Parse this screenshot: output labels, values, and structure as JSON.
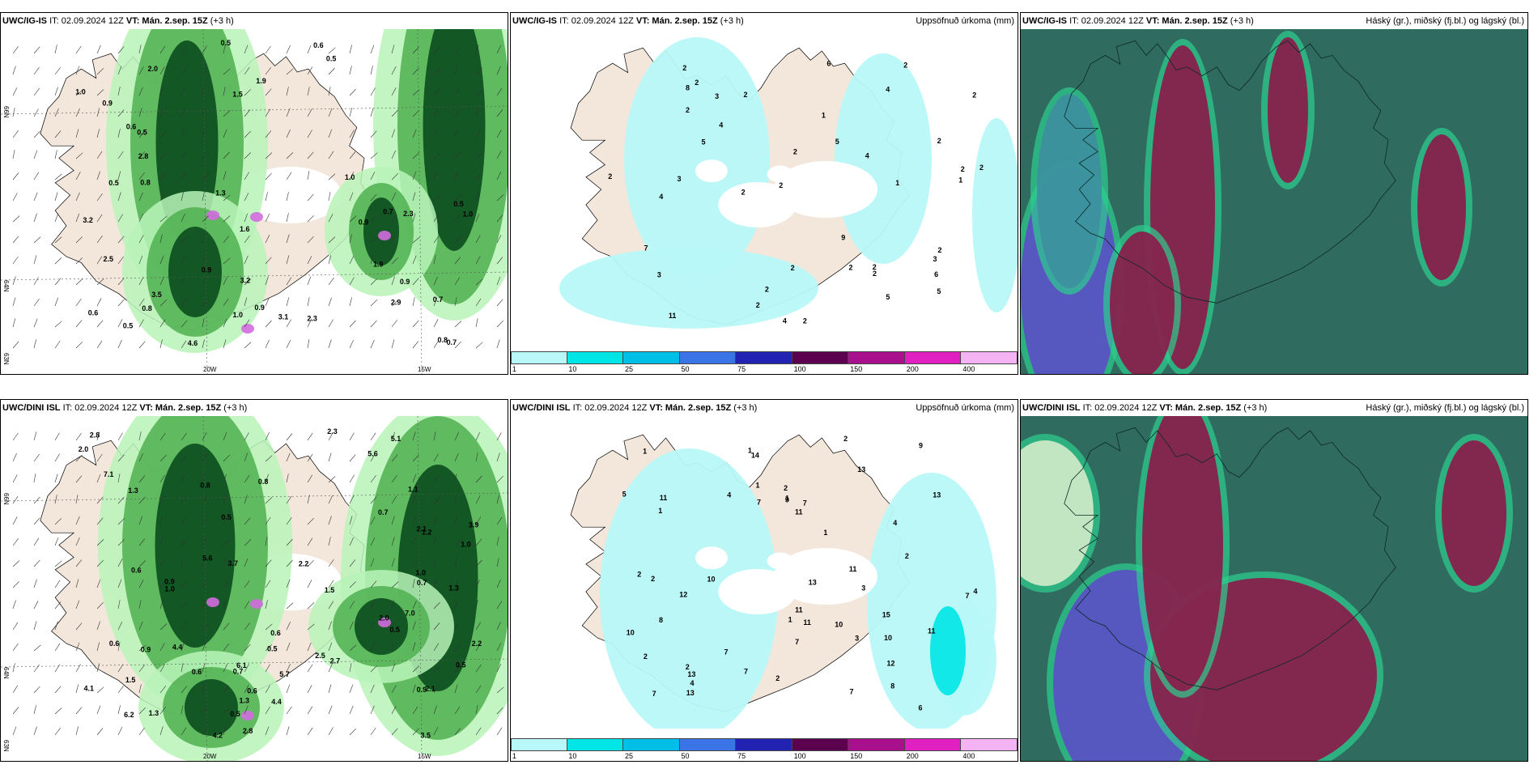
{
  "colors": {
    "land": "#f3e7dc",
    "sea": "#ffffff",
    "precip_light": "#b9f3b9",
    "precip_mid": "#4fb04f",
    "precip_dark": "#0b4d1e",
    "precip_pink": "#d36be0",
    "cloud_teal": "#2f6b5e",
    "cloud_maroon": "#8a1c4a",
    "cloud_violet": "#5a4fc4",
    "cloud_green": "#2ecf8f"
  },
  "colorbar": {
    "colors": [
      "#b8f8f8",
      "#00e6e6",
      "#00bfe6",
      "#3a74e6",
      "#2222b3",
      "#5c0050",
      "#a8108e",
      "#e020c0",
      "#f4b4f4"
    ],
    "labels": [
      "1",
      "10",
      "25",
      "50",
      "75",
      "100",
      "150",
      "200",
      "400"
    ]
  },
  "panels": [
    {
      "id": "top-precip",
      "model": "UWC/IG-IS",
      "it_label": "IT: 02.09.2024 12Z",
      "vt_label": "VT: Mán. 2.sep. 15Z",
      "offset": "(+3 h)",
      "right_title": "",
      "lat_labels": [
        "66N",
        "64N",
        "63N"
      ],
      "lon_labels": [
        "20W",
        "15W"
      ],
      "values": [
        "0.5",
        "0.6",
        "0.9",
        "0.8",
        "1.3",
        "2.0",
        "1.6",
        "1.9",
        "2.3",
        "3.2",
        "0.7",
        "1.0",
        "0.9",
        "0.5",
        "1.0",
        "0.7",
        "0.5",
        "0.6",
        "0.9",
        "0.9",
        "1.5",
        "2.8",
        "2.3",
        "2.5",
        "4.6",
        "3.5",
        "3.2",
        "3.1",
        "2.9",
        "1.9",
        "0.8",
        "0.7",
        "1.0",
        "0.6",
        "0.5",
        "0.9",
        "0.5",
        "0.8",
        "1.0",
        "0.5"
      ]
    },
    {
      "id": "top-accum",
      "model": "UWC/IG-IS",
      "it_label": "IT: 02.09.2024 12Z",
      "vt_label": "VT: Mán. 2.sep. 15Z",
      "offset": "(+3 h)",
      "right_title": "Uppsöfnuð úrkoma (mm)",
      "values": [
        "2",
        "3",
        "2",
        "2",
        "5",
        "2",
        "4",
        "2",
        "2",
        "5",
        "5",
        "11",
        "4",
        "6",
        "2",
        "3",
        "4",
        "5",
        "2",
        "2",
        "2",
        "6",
        "8",
        "9",
        "2",
        "2",
        "2",
        "3",
        "3",
        "4",
        "2",
        "4",
        "2",
        "1",
        "1",
        "1",
        "2",
        "2",
        "2",
        "2",
        "2",
        "2",
        "7"
      ]
    },
    {
      "id": "top-cloud",
      "model": "UWC/IG-IS",
      "it_label": "IT: 02.09.2024 12Z",
      "vt_label": "VT: Mán. 2.sep. 15Z",
      "offset": "(+3 h)",
      "right_title": "Háský (gr.), miðský (fj.bl.) og lágský (bl.)"
    },
    {
      "id": "bottom-precip",
      "model": "UWC/DINI ISL",
      "it_label": "IT: 02.09.2024 12Z",
      "vt_label": "VT: Mán. 2.sep. 15Z",
      "offset": "(+3 h)",
      "right_title": "",
      "lat_labels": [
        "66N",
        "64N",
        "63N"
      ],
      "lon_labels": [
        "20W",
        "15W"
      ],
      "values": [
        "1.3",
        "0.8",
        "2.2",
        "1.1",
        "1.3",
        "0.9",
        "1.5",
        "2.0",
        "0.8",
        "0.7",
        "1.5",
        "2.0",
        "1.0",
        "3.7",
        "1.0",
        "0.5",
        "0.9",
        "0.6",
        "0.5",
        "1.2",
        "1.0",
        "0.5",
        "0.7",
        "0.6",
        "1.3",
        "3.5",
        "5.6",
        "4.1",
        "5.7",
        "7.0",
        "2.7",
        "2.8",
        "3.9",
        "4.2",
        "5.1",
        "6.2",
        "4.4",
        "7.1",
        "2.5",
        "6.1",
        "4.4",
        "5.6",
        "2.8",
        "2.3",
        "2.1",
        "2.1",
        "2.2",
        "0.6",
        "0.6",
        "0.5",
        "0.7",
        "1.3",
        "0.5",
        "0.6",
        "0.9"
      ]
    },
    {
      "id": "bottom-accum",
      "model": "UWC/DINI ISL",
      "it_label": "IT: 02.09.2024 12Z",
      "vt_label": "VT: Mán. 2.sep. 15Z",
      "offset": "(+3 h)",
      "right_title": "Uppsöfnuð úrkoma (mm)",
      "values": [
        "2",
        "1",
        "2",
        "2",
        "4",
        "4",
        "4",
        "3",
        "2",
        "8",
        "1",
        "6",
        "7",
        "1",
        "1",
        "9",
        "5",
        "7",
        "4",
        "2",
        "1",
        "10",
        "7",
        "1",
        "11",
        "7",
        "1",
        "2",
        "14",
        "9",
        "10",
        "13",
        "11",
        "15",
        "11",
        "13",
        "12",
        "13",
        "13",
        "12",
        "11",
        "13",
        "10",
        "10",
        "11",
        "11",
        "7",
        "7",
        "7",
        "7",
        "8",
        "3",
        "2",
        "2"
      ]
    },
    {
      "id": "bottom-cloud",
      "model": "UWC/DINI ISL",
      "it_label": "IT: 02.09.2024 12Z",
      "vt_label": "VT: Mán. 2.sep. 15Z",
      "offset": "(+3 h)",
      "right_title": "Háský (gr.), miðský (fj.bl.) og lágský (bl.)"
    }
  ]
}
